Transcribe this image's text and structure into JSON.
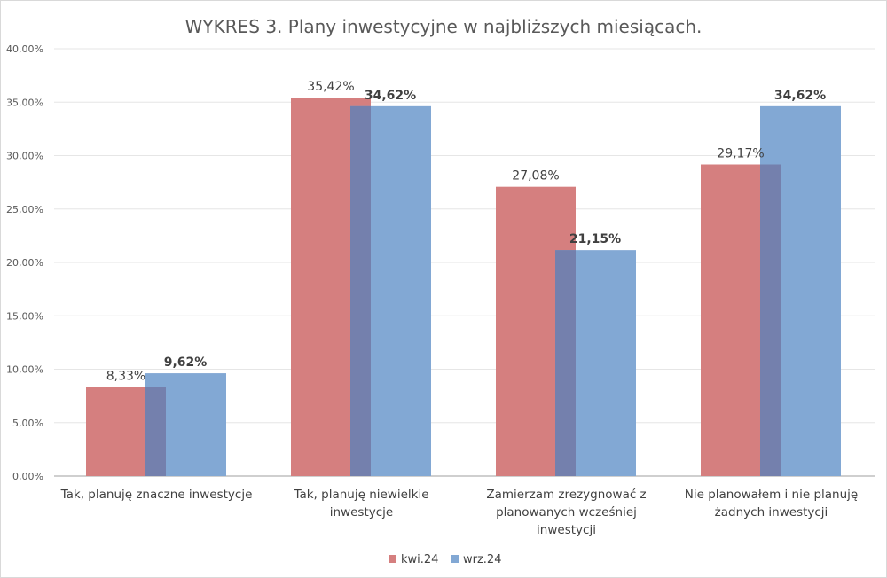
{
  "chart_data": {
    "type": "bar",
    "title": "WYKRES 3. Plany inwestycyjne w najbliższych miesiącach.",
    "categories": [
      [
        "Tak, planuję znaczne inwestycje"
      ],
      [
        "Tak, planuję niewielkie",
        "inwestycje"
      ],
      [
        "Zamierzam zrezygnować z",
        "planowanych wcześniej",
        "inwestycji"
      ],
      [
        "Nie planowałem i nie planuję",
        "żadnych inwestycji"
      ]
    ],
    "series": [
      {
        "name": "kwi.24",
        "color": "#d57f7f",
        "values": [
          8.33,
          35.42,
          27.08,
          29.17
        ],
        "labels": [
          "8,33%",
          "35,42%",
          "27,08%",
          "29,17%"
        ],
        "bold": false
      },
      {
        "name": "wrz.24",
        "color": "#82a8d4",
        "values": [
          9.62,
          34.62,
          21.15,
          34.62
        ],
        "labels": [
          "9,62%",
          "34,62%",
          "21,15%",
          "34,62%"
        ],
        "bold": true
      }
    ],
    "overlap_color": "#7480ad",
    "ylim": [
      0,
      40
    ],
    "yticks": [
      0,
      5,
      10,
      15,
      20,
      25,
      30,
      35,
      40
    ],
    "ytick_labels": [
      "0,00%",
      "5,00%",
      "10,00%",
      "15,00%",
      "20,00%",
      "25,00%",
      "30,00%",
      "35,00%",
      "40,00%"
    ],
    "grid": true,
    "legend": "bottom"
  }
}
